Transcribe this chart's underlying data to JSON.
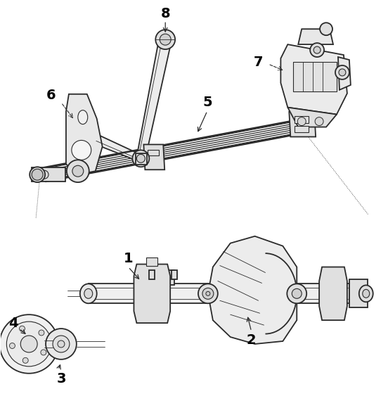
{
  "bg_color": "#ffffff",
  "line_color": "#2a2a2a",
  "label_color": "#000000",
  "fig_width": 5.52,
  "fig_height": 5.7,
  "dpi": 100,
  "label_fontsize": 14,
  "label_fontweight": "bold",
  "lw_main": 1.3,
  "lw_thin": 0.6,
  "lw_thick": 1.8,
  "part_fc": "#f5f5f5",
  "part_ec": "#2a2a2a"
}
